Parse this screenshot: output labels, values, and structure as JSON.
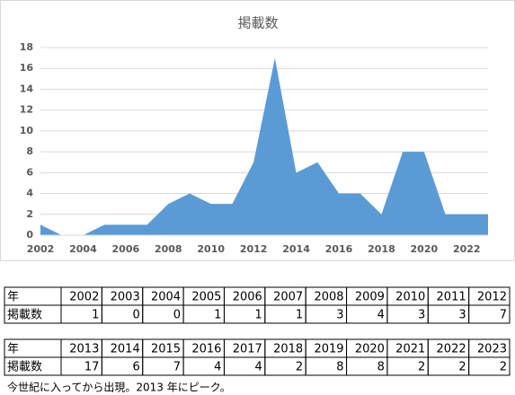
{
  "chart_data": {
    "type": "area",
    "title": "掲載数",
    "x": [
      2002,
      2003,
      2004,
      2005,
      2006,
      2007,
      2008,
      2009,
      2010,
      2011,
      2012,
      2013,
      2014,
      2015,
      2016,
      2017,
      2018,
      2019,
      2020,
      2021,
      2022,
      2023
    ],
    "values": [
      1,
      0,
      0,
      1,
      1,
      1,
      3,
      4,
      3,
      3,
      7,
      17,
      6,
      7,
      4,
      4,
      2,
      8,
      8,
      2,
      2,
      2
    ],
    "color": "#5b9bd5",
    "xlim": [
      2002,
      2023
    ],
    "xticks": [
      2002,
      2004,
      2006,
      2008,
      2010,
      2012,
      2014,
      2016,
      2018,
      2020,
      2022
    ],
    "ylim": [
      0,
      18
    ],
    "yticks": [
      0,
      2,
      4,
      6,
      8,
      10,
      12,
      14,
      16,
      18
    ],
    "grid": true
  },
  "table": {
    "row_labels": [
      "年",
      "掲載数"
    ]
  },
  "caption": "今世紀に入ってから出現。2013 年にピーク。"
}
